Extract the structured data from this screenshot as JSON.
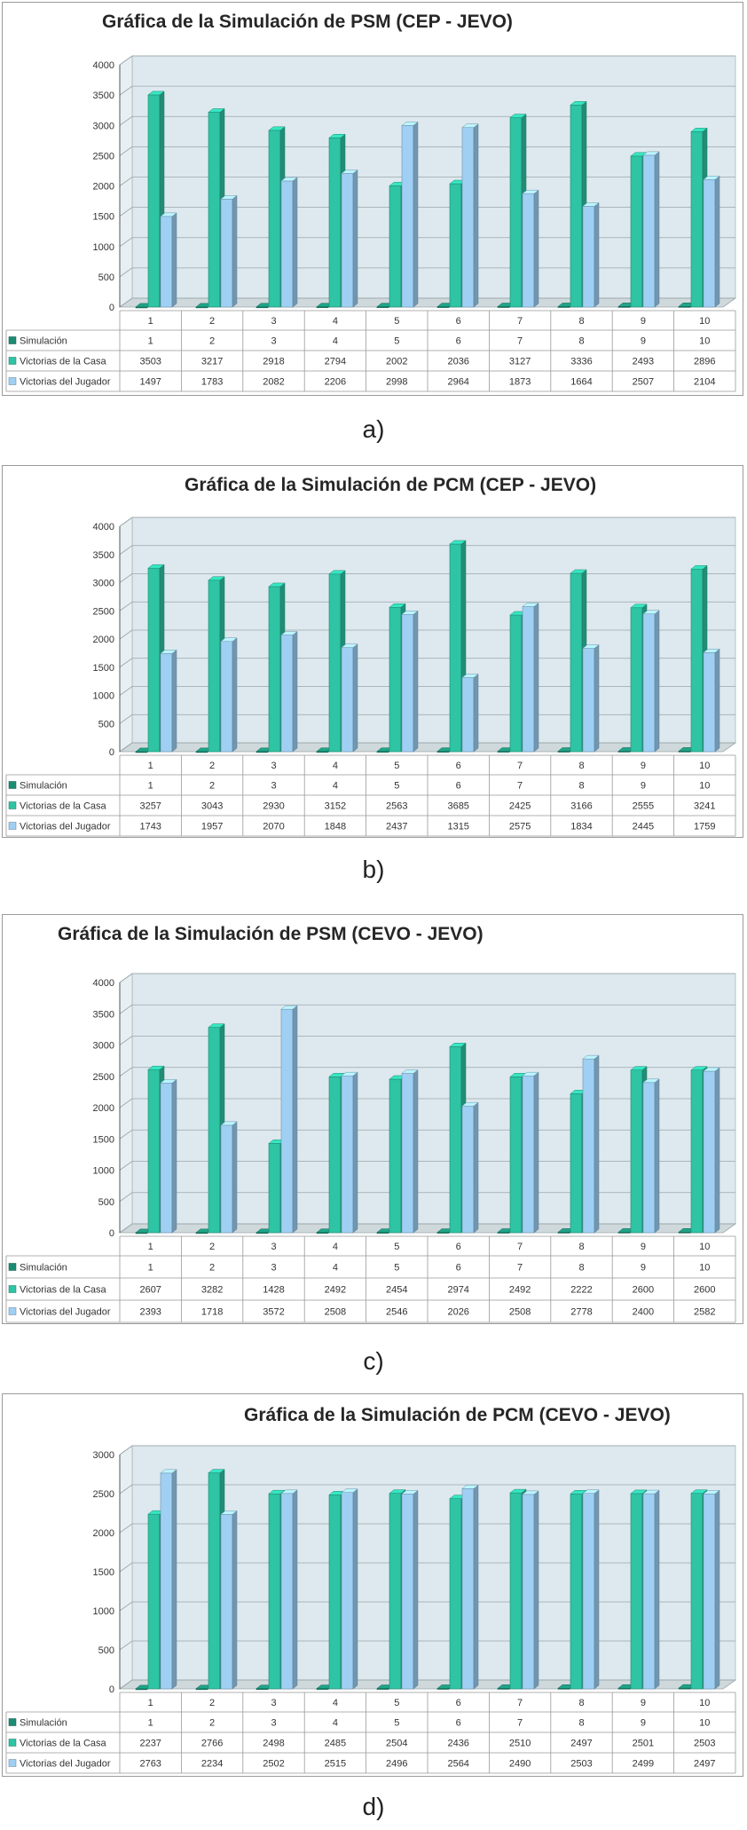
{
  "captions": [
    "a)",
    "b)",
    "c)",
    "d)"
  ],
  "chart_data": [
    {
      "type": "bar",
      "title": "Gráfica de la Simulación de PSM (CEP - JEVO)",
      "categories": [
        "1",
        "2",
        "3",
        "4",
        "5",
        "6",
        "7",
        "8",
        "9",
        "10"
      ],
      "ylim": [
        0,
        4000
      ],
      "yticks": [
        0,
        500,
        1000,
        1500,
        2000,
        2500,
        3000,
        3500,
        4000
      ],
      "series": [
        {
          "name": "Simulación",
          "values": [
            1,
            2,
            3,
            4,
            5,
            6,
            7,
            8,
            9,
            10
          ],
          "color": "#1a8c74"
        },
        {
          "name": "Victorias de la Casa",
          "values": [
            3503,
            3217,
            2918,
            2794,
            2002,
            2036,
            3127,
            3336,
            2493,
            2896
          ],
          "color": "#2ec4a4"
        },
        {
          "name": "Victorias del Jugador",
          "values": [
            1497,
            1783,
            2082,
            2206,
            2998,
            2964,
            1873,
            1664,
            2507,
            2104
          ],
          "color": "#9fd0f4"
        }
      ],
      "grid": true,
      "legend": "data-table"
    },
    {
      "type": "bar",
      "title": "Gráfica de la Simulación de PCM (CEP - JEVO)",
      "categories": [
        "1",
        "2",
        "3",
        "4",
        "5",
        "6",
        "7",
        "8",
        "9",
        "10"
      ],
      "ylim": [
        0,
        4000
      ],
      "yticks": [
        0,
        500,
        1000,
        1500,
        2000,
        2500,
        3000,
        3500,
        4000
      ],
      "series": [
        {
          "name": "Simulación",
          "values": [
            1,
            2,
            3,
            4,
            5,
            6,
            7,
            8,
            9,
            10
          ],
          "color": "#1a8c74"
        },
        {
          "name": "Victorias de la Casa",
          "values": [
            3257,
            3043,
            2930,
            3152,
            2563,
            3685,
            2425,
            3166,
            2555,
            3241
          ],
          "color": "#2ec4a4"
        },
        {
          "name": "Victorias del Jugador",
          "values": [
            1743,
            1957,
            2070,
            1848,
            2437,
            1315,
            2575,
            1834,
            2445,
            1759
          ],
          "color": "#9fd0f4"
        }
      ],
      "grid": true,
      "legend": "data-table"
    },
    {
      "type": "bar",
      "title": "Gráfica de la Simulación de PSM (CEVO - JEVO)",
      "categories": [
        "1",
        "2",
        "3",
        "4",
        "5",
        "6",
        "7",
        "8",
        "9",
        "10"
      ],
      "ylim": [
        0,
        4000
      ],
      "yticks": [
        0,
        500,
        1000,
        1500,
        2000,
        2500,
        3000,
        3500,
        4000
      ],
      "series": [
        {
          "name": "Simulación",
          "values": [
            1,
            2,
            3,
            4,
            5,
            6,
            7,
            8,
            9,
            10
          ],
          "color": "#1a8c74"
        },
        {
          "name": "Victorias de la Casa",
          "values": [
            2607,
            3282,
            1428,
            2492,
            2454,
            2974,
            2492,
            2222,
            2600,
            2600
          ],
          "color": "#2ec4a4"
        },
        {
          "name": "Victorias del Jugador",
          "values": [
            2393,
            1718,
            3572,
            2508,
            2546,
            2026,
            2508,
            2778,
            2400,
            2582
          ],
          "color": "#9fd0f4"
        }
      ],
      "grid": true,
      "legend": "data-table"
    },
    {
      "type": "bar",
      "title": "Gráfica de la Simulación de PCM (CEVO - JEVO)",
      "categories": [
        "1",
        "2",
        "3",
        "4",
        "5",
        "6",
        "7",
        "8",
        "9",
        "10"
      ],
      "ylim": [
        0,
        3000
      ],
      "yticks": [
        0,
        500,
        1000,
        1500,
        2000,
        2500,
        3000
      ],
      "series": [
        {
          "name": "Simulación",
          "values": [
            1,
            2,
            3,
            4,
            5,
            6,
            7,
            8,
            9,
            10
          ],
          "color": "#1a8c74"
        },
        {
          "name": "Victorias de la Casa",
          "values": [
            2237,
            2766,
            2498,
            2485,
            2504,
            2436,
            2510,
            2497,
            2501,
            2503
          ],
          "color": "#2ec4a4"
        },
        {
          "name": "Victorias del Jugador",
          "values": [
            2763,
            2234,
            2502,
            2515,
            2496,
            2564,
            2490,
            2503,
            2499,
            2497
          ],
          "color": "#9fd0f4"
        }
      ],
      "grid": true,
      "legend": "data-table"
    }
  ]
}
